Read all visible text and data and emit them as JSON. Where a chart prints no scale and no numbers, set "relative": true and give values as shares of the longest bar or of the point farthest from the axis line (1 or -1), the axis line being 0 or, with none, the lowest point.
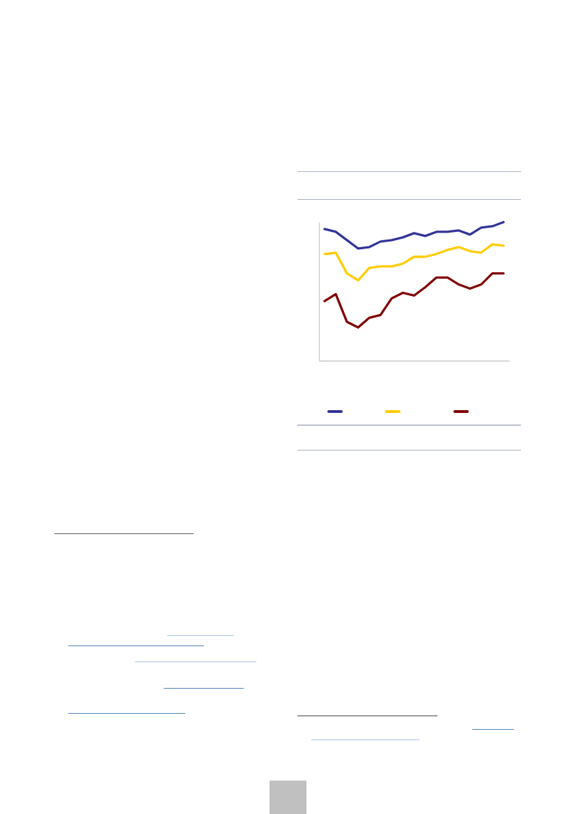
{
  "chart_data": {
    "type": "line",
    "relative": true,
    "line_style": "solid",
    "categories": [
      null,
      null,
      null,
      null,
      null,
      null,
      null,
      null,
      null,
      null,
      null,
      null,
      null,
      null,
      null,
      null,
      null
    ],
    "series": [
      {
        "color": "#333399",
        "values": [
          0.95,
          0.93,
          0.87,
          0.81,
          0.82,
          0.86,
          0.87,
          0.89,
          0.92,
          0.9,
          0.93,
          0.93,
          0.94,
          0.91,
          0.96,
          0.97,
          1
        ]
      },
      {
        "color": "#ffcc00",
        "values": [
          0.77,
          0.78,
          0.63,
          0.58,
          0.67,
          0.68,
          0.68,
          0.7,
          0.75,
          0.75,
          0.77,
          0.8,
          0.82,
          0.79,
          0.78,
          0.84,
          0.83
        ]
      },
      {
        "color": "#800000",
        "values": [
          0.43,
          0.48,
          0.28,
          0.24,
          0.31,
          0.33,
          0.45,
          0.49,
          0.47,
          0.53,
          0.6,
          0.6,
          0.55,
          0.52,
          0.55,
          0.63,
          0.63
        ]
      }
    ]
  }
}
